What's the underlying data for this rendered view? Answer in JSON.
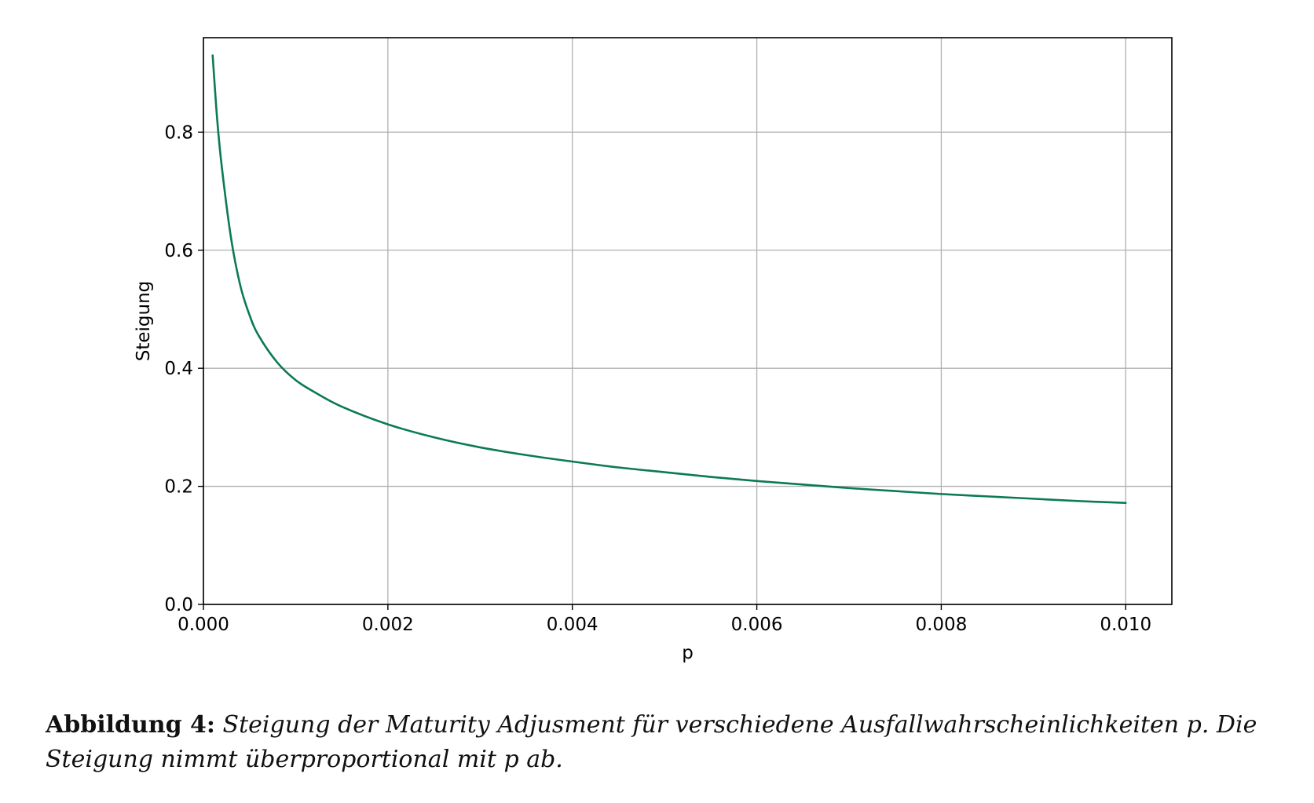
{
  "chart_data": {
    "type": "line",
    "xlabel": "p",
    "ylabel": "Steigung",
    "xlim": [
      0.0,
      0.0105
    ],
    "ylim": [
      0.0,
      0.96
    ],
    "xticks": [
      0.0,
      0.002,
      0.004,
      0.006,
      0.008,
      0.01
    ],
    "xtick_labels": [
      "0.000",
      "0.002",
      "0.004",
      "0.006",
      "0.008",
      "0.010"
    ],
    "yticks": [
      0.0,
      0.2,
      0.4,
      0.6,
      0.8
    ],
    "ytick_labels": [
      "0.0",
      "0.2",
      "0.4",
      "0.6",
      "0.8"
    ],
    "grid": true,
    "series": [
      {
        "color": "#0b7a55",
        "x": [
          0.0001,
          0.00015,
          0.0002,
          0.0003,
          0.0004,
          0.0005,
          0.0006,
          0.0008,
          0.001,
          0.0012,
          0.0015,
          0.002,
          0.0025,
          0.003,
          0.0035,
          0.004,
          0.0045,
          0.005,
          0.0055,
          0.006,
          0.0065,
          0.007,
          0.0075,
          0.008,
          0.0085,
          0.009,
          0.0095,
          0.01
        ],
        "y": [
          0.93,
          0.82,
          0.74,
          0.62,
          0.54,
          0.49,
          0.455,
          0.41,
          0.38,
          0.36,
          0.335,
          0.305,
          0.283,
          0.266,
          0.253,
          0.242,
          0.232,
          0.224,
          0.216,
          0.209,
          0.203,
          0.197,
          0.192,
          0.187,
          0.183,
          0.179,
          0.175,
          0.172
        ]
      }
    ]
  },
  "caption": {
    "label": "Abbildung 4:",
    "text": "Steigung der Maturity Adjusment für verschiedene Ausfallwahrscheinlichkeiten p. Die Steigung nimmt überproportional mit p ab."
  }
}
